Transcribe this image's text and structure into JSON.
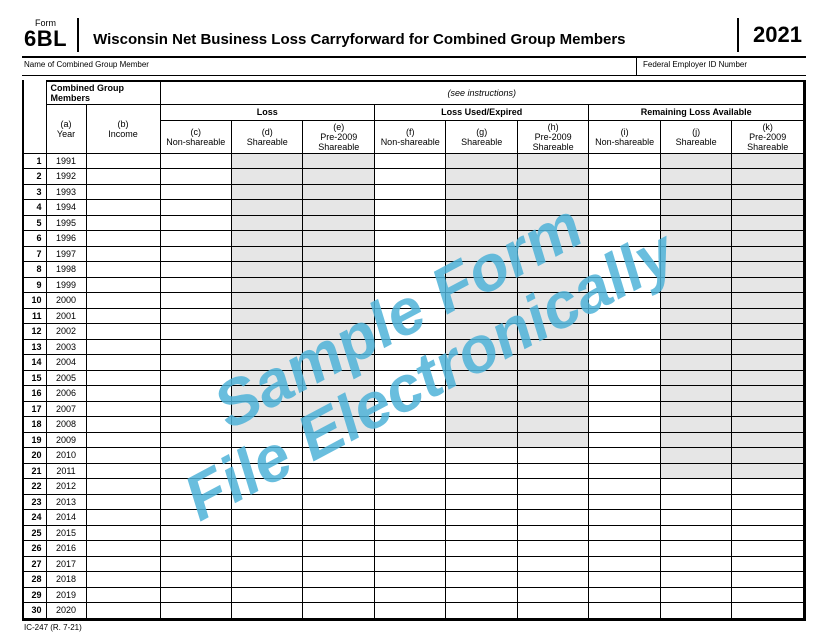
{
  "header": {
    "form_word": "Form",
    "form_number": "6BL",
    "title": "Wisconsin Net Business Loss Carryforward for Combined Group Members",
    "year": "2021"
  },
  "subheader": {
    "left": "Name of Combined Group Member",
    "right": "Federal Employer ID Number"
  },
  "groupings": {
    "combined": "Combined Group Members",
    "instr": "(see instructions)",
    "loss": "Loss",
    "used": "Loss Used/Expired",
    "remaining": "Remaining Loss Available"
  },
  "cols": {
    "a": {
      "letter": "(a)",
      "label": "Year"
    },
    "b": {
      "letter": "(b)",
      "label": "Income"
    },
    "c": {
      "letter": "(c)",
      "label": "Non-shareable"
    },
    "d": {
      "letter": "(d)",
      "label": "Shareable"
    },
    "e": {
      "letter": "(e)",
      "label": "Pre-2009 Shareable"
    },
    "f": {
      "letter": "(f)",
      "label": "Non-shareable"
    },
    "g": {
      "letter": "(g)",
      "label": "Shareable"
    },
    "h": {
      "letter": "(h)",
      "label": "Pre-2009 Shareable"
    },
    "i": {
      "letter": "(i)",
      "label": "Non-shareable"
    },
    "j": {
      "letter": "(j)",
      "label": "Shareable"
    },
    "k": {
      "letter": "(k)",
      "label": "Pre-2009 Shareable"
    }
  },
  "rows": [
    {
      "n": "1",
      "y": "1991"
    },
    {
      "n": "2",
      "y": "1992"
    },
    {
      "n": "3",
      "y": "1993"
    },
    {
      "n": "4",
      "y": "1994"
    },
    {
      "n": "5",
      "y": "1995"
    },
    {
      "n": "6",
      "y": "1996"
    },
    {
      "n": "7",
      "y": "1997"
    },
    {
      "n": "8",
      "y": "1998"
    },
    {
      "n": "9",
      "y": "1999"
    },
    {
      "n": "10",
      "y": "2000"
    },
    {
      "n": "11",
      "y": "2001"
    },
    {
      "n": "12",
      "y": "2002"
    },
    {
      "n": "13",
      "y": "2003"
    },
    {
      "n": "14",
      "y": "2004"
    },
    {
      "n": "15",
      "y": "2005"
    },
    {
      "n": "16",
      "y": "2006"
    },
    {
      "n": "17",
      "y": "2007"
    },
    {
      "n": "18",
      "y": "2008"
    },
    {
      "n": "19",
      "y": "2009"
    },
    {
      "n": "20",
      "y": "2010"
    },
    {
      "n": "21",
      "y": "2011"
    },
    {
      "n": "22",
      "y": "2012"
    },
    {
      "n": "23",
      "y": "2013"
    },
    {
      "n": "24",
      "y": "2014"
    },
    {
      "n": "25",
      "y": "2015"
    },
    {
      "n": "26",
      "y": "2016"
    },
    {
      "n": "27",
      "y": "2017"
    },
    {
      "n": "28",
      "y": "2018"
    },
    {
      "n": "29",
      "y": "2019"
    },
    {
      "n": "30",
      "y": "2020"
    }
  ],
  "footer": "IC-247 (R. 7-21)",
  "watermark": {
    "line1": "Sample Form",
    "line2": "File Electronically"
  },
  "style": {
    "wm_color": "#4fb3d9",
    "shaded_bg": "#e6e6e6",
    "shaded_de_rows": 18,
    "shaded_gh_rows": 19,
    "shaded_jk_rows": 21
  }
}
